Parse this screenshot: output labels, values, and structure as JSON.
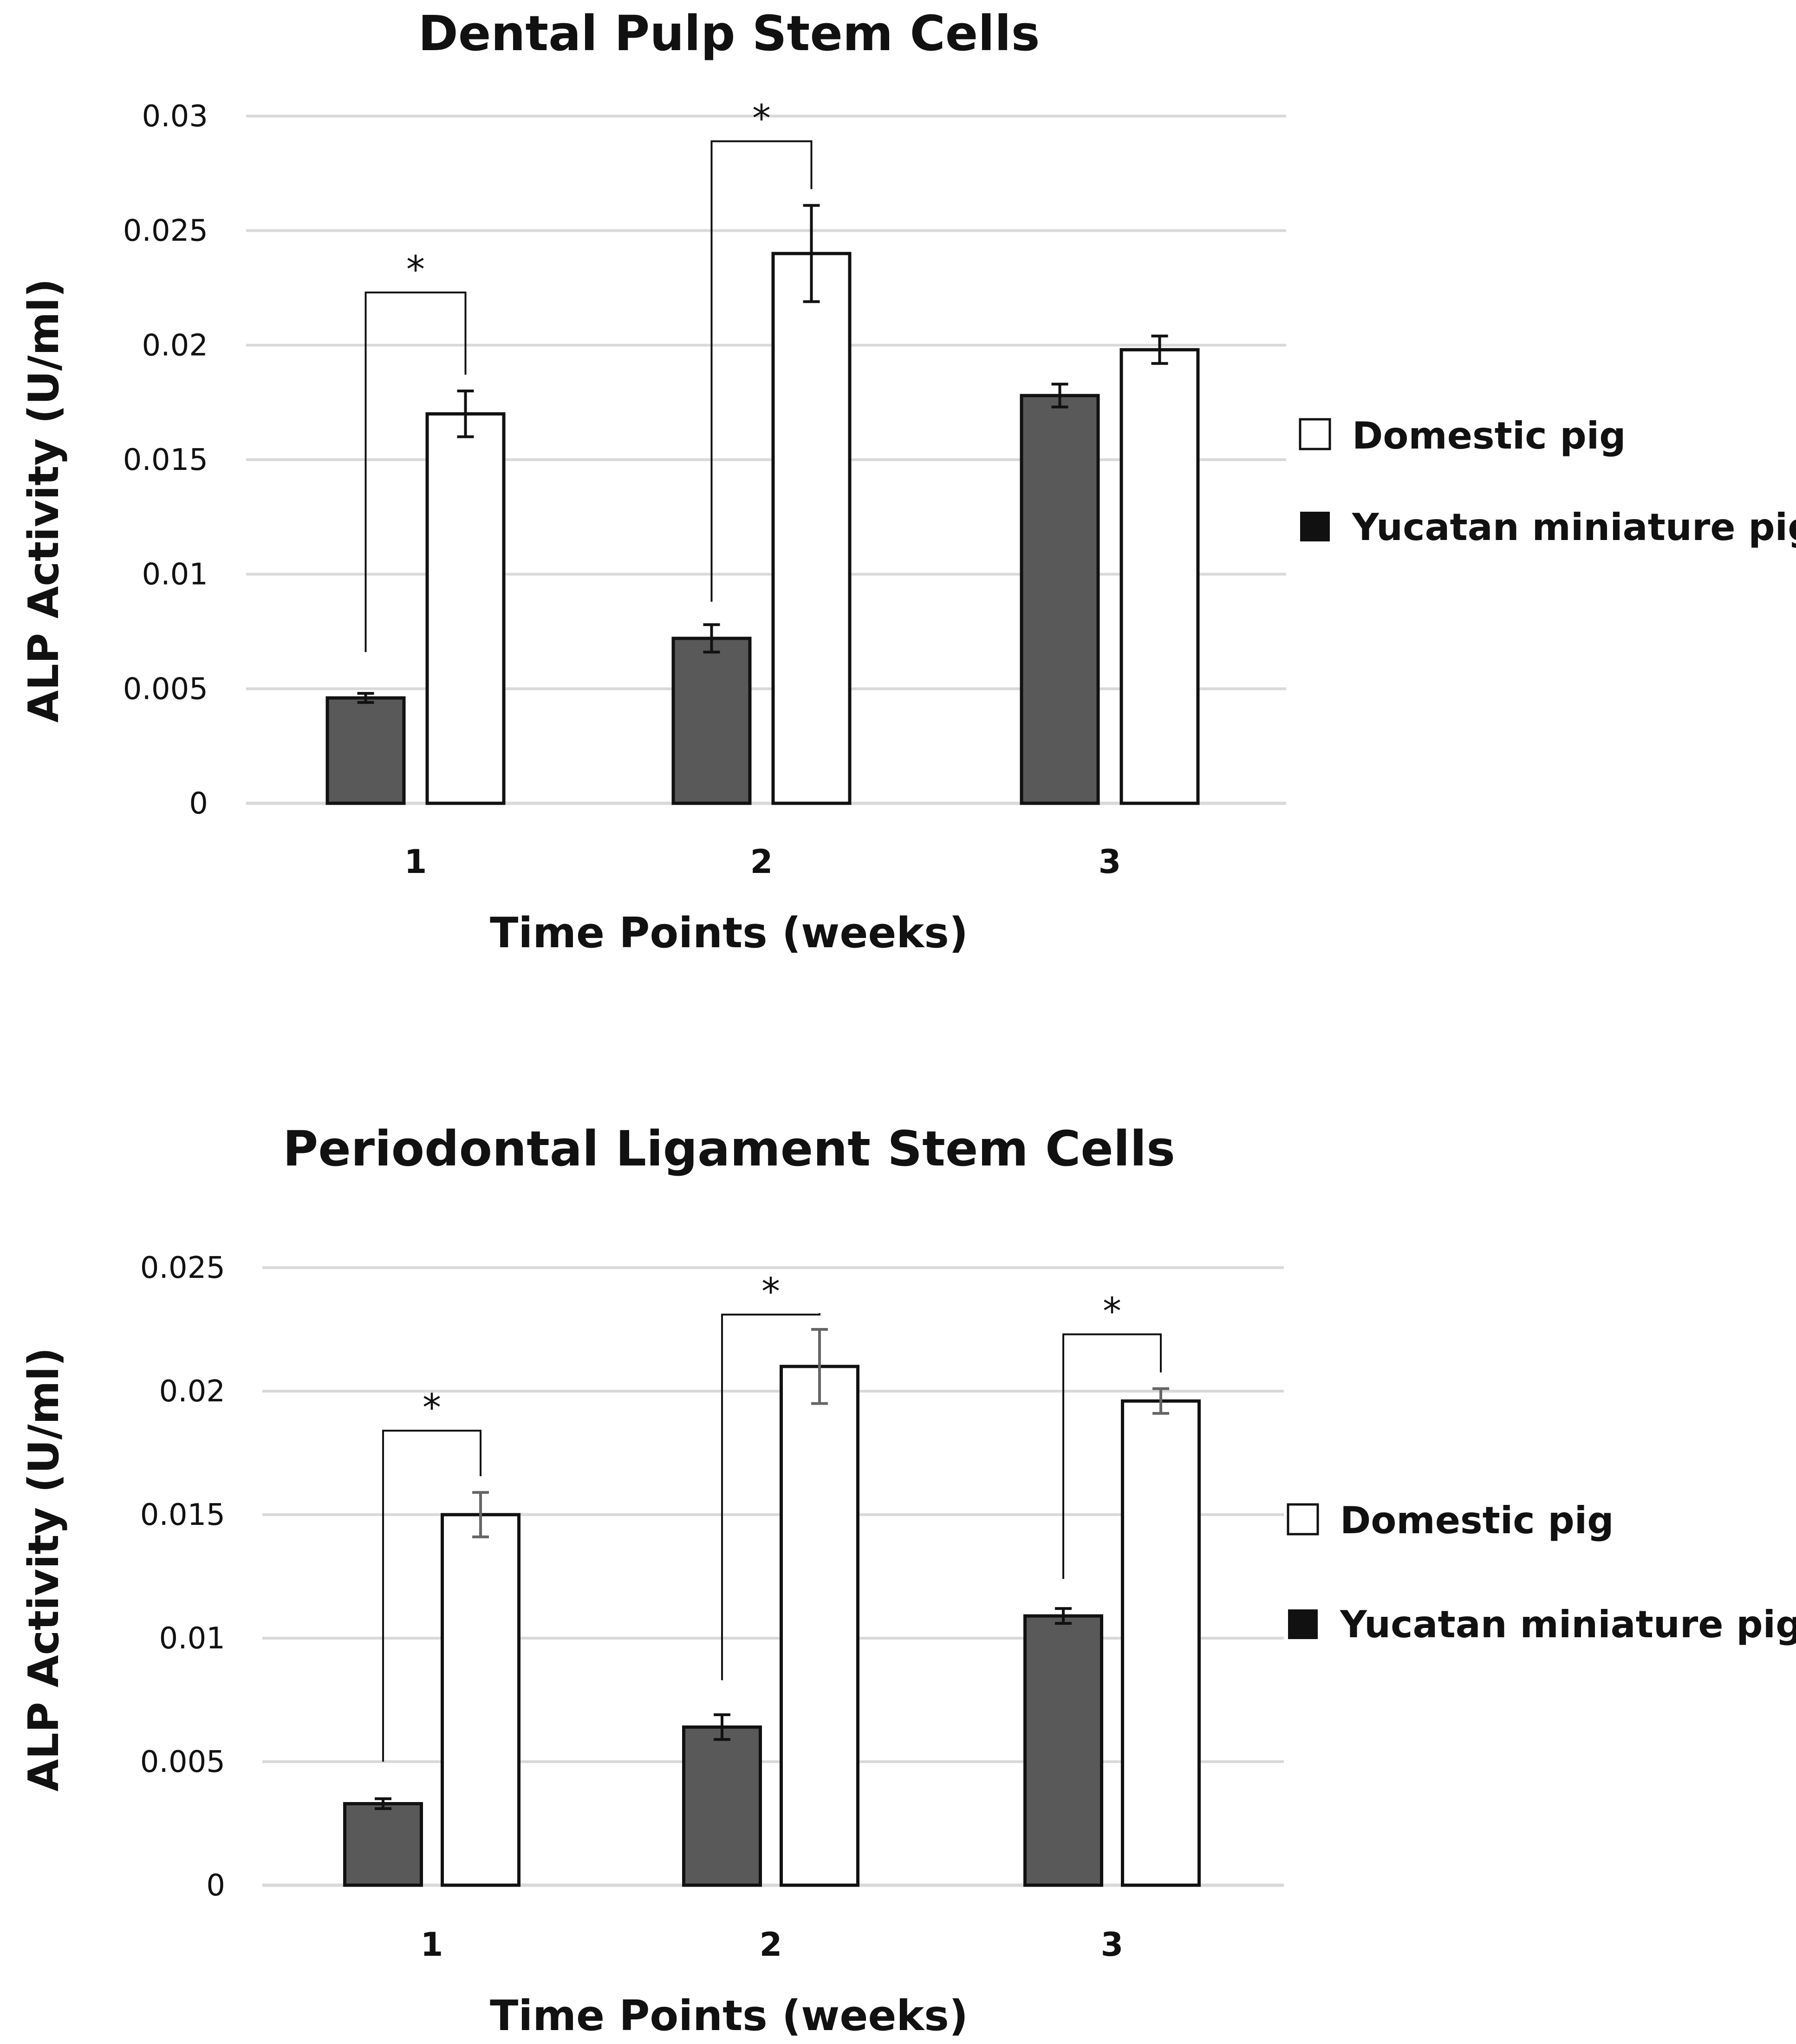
{
  "colors": {
    "domestic_fill": "#ffffff",
    "yucatan_fill": "#595959",
    "bar_stroke": "#111111",
    "gridline": "#d9d9d9",
    "errorbar_top": "#111111",
    "errorbar_bottom": "#666666"
  },
  "chart_data": [
    {
      "type": "bar",
      "title": "Dental Pulp Stem Cells",
      "xlabel": "Time Points (weeks)",
      "ylabel": "ALP Activity (U/ml)",
      "categories": [
        "1",
        "2",
        "3"
      ],
      "ylim": [
        0,
        0.03
      ],
      "yticks": [
        {
          "value": 0,
          "label": "0"
        },
        {
          "value": 0.005,
          "label": "0.005"
        },
        {
          "value": 0.01,
          "label": "0.01"
        },
        {
          "value": 0.015,
          "label": "0.015"
        },
        {
          "value": 0.02,
          "label": "0.02"
        },
        {
          "value": 0.025,
          "label": "0.025"
        },
        {
          "value": 0.03,
          "label": "0.03"
        }
      ],
      "grid": true,
      "legend_position": "right",
      "series": [
        {
          "name": "Yucatan miniature pig",
          "values": [
            0.0046,
            0.0072,
            0.0178
          ],
          "errors": [
            0.0002,
            0.0006,
            0.0005
          ]
        },
        {
          "name": "Domestic pig",
          "values": [
            0.017,
            0.024,
            0.0198
          ],
          "errors": [
            0.001,
            0.0021,
            0.0006
          ]
        }
      ],
      "legend": [
        {
          "name": "Domestic pig",
          "swatch": "white"
        },
        {
          "name": "Yucatan miniature pig",
          "swatch": "black"
        }
      ],
      "annotations": [
        {
          "category": "1",
          "text": "*",
          "left_base": 0.0066,
          "top": 0.0223
        },
        {
          "category": "2",
          "text": "*",
          "left_base": 0.0088,
          "top": 0.0289
        }
      ]
    },
    {
      "type": "bar",
      "title": "Periodontal Ligament Stem Cells",
      "xlabel": "Time Points (weeks)",
      "ylabel": "ALP Activity (U/ml)",
      "categories": [
        "1",
        "2",
        "3"
      ],
      "ylim": [
        0,
        0.025
      ],
      "yticks": [
        {
          "value": 0,
          "label": "0"
        },
        {
          "value": 0.005,
          "label": "0.005"
        },
        {
          "value": 0.01,
          "label": "0.01"
        },
        {
          "value": 0.015,
          "label": "0.015"
        },
        {
          "value": 0.02,
          "label": "0.02"
        },
        {
          "value": 0.025,
          "label": "0.025"
        }
      ],
      "grid": true,
      "legend_position": "right",
      "series": [
        {
          "name": "Yucatan miniature pig",
          "values": [
            0.0033,
            0.0064,
            0.0109
          ],
          "errors": [
            0.0002,
            0.0005,
            0.0003
          ]
        },
        {
          "name": "Domestic pig",
          "values": [
            0.015,
            0.021,
            0.0196
          ],
          "errors": [
            0.0009,
            0.0015,
            0.0005
          ]
        }
      ],
      "legend": [
        {
          "name": "Domestic pig",
          "swatch": "white"
        },
        {
          "name": "Yucatan miniature pig",
          "swatch": "black"
        }
      ],
      "annotations": [
        {
          "category": "1",
          "text": "*",
          "left_base": 0.005,
          "top": 0.0184
        },
        {
          "category": "2",
          "text": "*",
          "left_base": 0.0083,
          "top": 0.0231
        },
        {
          "category": "3",
          "text": "*",
          "left_base": 0.0124,
          "top": 0.0223
        }
      ]
    }
  ]
}
